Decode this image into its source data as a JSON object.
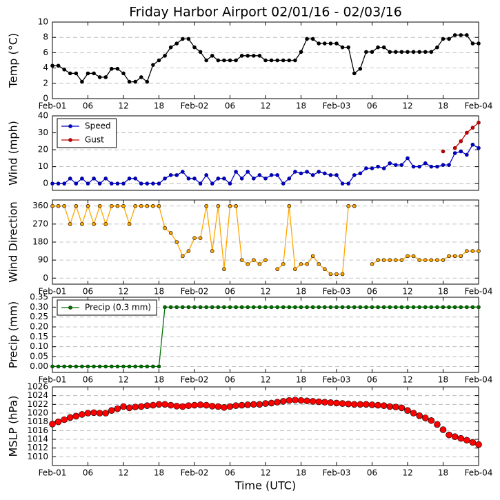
{
  "chart_data": [
    {
      "type": "line",
      "title": "Friday Harbor Airport 02/01/16 - 02/03/16",
      "ylabel": "Temp (°C)",
      "xlim": [
        0,
        72
      ],
      "ylim": [
        0,
        10
      ],
      "yticks": [
        0,
        2,
        4,
        6,
        8,
        10
      ],
      "grid": true,
      "xticks": [
        {
          "value": 0,
          "label": "Feb-01"
        },
        {
          "value": 6,
          "label": "06"
        },
        {
          "value": 12,
          "label": "12"
        },
        {
          "value": 18,
          "label": "18"
        },
        {
          "value": 24,
          "label": "Feb-02"
        },
        {
          "value": 30,
          "label": "06"
        },
        {
          "value": 36,
          "label": "12"
        },
        {
          "value": 42,
          "label": "18"
        },
        {
          "value": 48,
          "label": "Feb-03"
        },
        {
          "value": 54,
          "label": "06"
        },
        {
          "value": 60,
          "label": "12"
        },
        {
          "value": 66,
          "label": "18"
        },
        {
          "value": 72,
          "label": "Feb-04"
        }
      ],
      "x": [
        0,
        1,
        2,
        3,
        4,
        5,
        6,
        7,
        8,
        9,
        10,
        11,
        12,
        13,
        14,
        15,
        16,
        17,
        18,
        19,
        20,
        21,
        22,
        23,
        24,
        25,
        26,
        27,
        28,
        29,
        30,
        31,
        32,
        33,
        34,
        35,
        36,
        37,
        38,
        39,
        40,
        41,
        42,
        43,
        44,
        45,
        46,
        47,
        48,
        49,
        50,
        51,
        52,
        53,
        54,
        55,
        56,
        57,
        58,
        59,
        60,
        61,
        62,
        63,
        64,
        65,
        66,
        67,
        68,
        69,
        70,
        71,
        72
      ],
      "series": [
        {
          "color": "#000000",
          "edgecolor": "#000000",
          "values": [
            4.3,
            4.3,
            3.8,
            3.3,
            3.3,
            2.2,
            3.3,
            3.3,
            2.8,
            2.8,
            3.9,
            3.9,
            3.3,
            2.2,
            2.2,
            2.8,
            2.2,
            4.4,
            5.0,
            5.6,
            6.7,
            7.2,
            7.8,
            7.8,
            6.7,
            6.1,
            5.0,
            5.6,
            5.0,
            5.0,
            5.0,
            5.0,
            5.6,
            5.6,
            5.6,
            5.6,
            5.0,
            5.0,
            5.0,
            5.0,
            5.0,
            5.0,
            6.1,
            7.8,
            7.8,
            7.2,
            7.2,
            7.2,
            7.2,
            6.7,
            6.7,
            3.3,
            3.9,
            6.1,
            6.1,
            6.7,
            6.7,
            6.1,
            6.1,
            6.1,
            6.1,
            6.1,
            6.1,
            6.1,
            6.1,
            6.7,
            7.8,
            7.8,
            8.3,
            8.3,
            8.3,
            7.2,
            7.2
          ]
        }
      ]
    },
    {
      "type": "line",
      "ylabel": "Wind (mph)",
      "xlim": [
        0,
        72
      ],
      "ylim": [
        -4,
        40
      ],
      "yticks": [
        0,
        10,
        20,
        30,
        40
      ],
      "grid": true,
      "legend": "upper left",
      "x": [
        0,
        1,
        2,
        3,
        4,
        5,
        6,
        7,
        8,
        9,
        10,
        11,
        12,
        13,
        14,
        15,
        16,
        17,
        18,
        19,
        20,
        21,
        22,
        23,
        24,
        25,
        26,
        27,
        28,
        29,
        30,
        31,
        32,
        33,
        34,
        35,
        36,
        37,
        38,
        39,
        40,
        41,
        42,
        43,
        44,
        45,
        46,
        47,
        48,
        49,
        50,
        51,
        52,
        53,
        54,
        55,
        56,
        57,
        58,
        59,
        60,
        61,
        62,
        63,
        64,
        65,
        66,
        67,
        68,
        69,
        70,
        71,
        72
      ],
      "series": [
        {
          "name": "Speed",
          "color": "#0000cc",
          "edgecolor": "#000066",
          "values": [
            0,
            0,
            0,
            3,
            0,
            3,
            0,
            3,
            0,
            3,
            0,
            0,
            0,
            3,
            3,
            0,
            0,
            0,
            0,
            3,
            5,
            5,
            7,
            3,
            3,
            0,
            5,
            0,
            3,
            3,
            0,
            7,
            3,
            7,
            3,
            5,
            3,
            5,
            5,
            0,
            3,
            7,
            6,
            7,
            5,
            7,
            6,
            5,
            5,
            0,
            0,
            5,
            6,
            9,
            9,
            10,
            9,
            12,
            11,
            11,
            15,
            10,
            10,
            12,
            10,
            10,
            11,
            11,
            18,
            19,
            17,
            23,
            21
          ]
        },
        {
          "name": "Gust",
          "color": "#cc0000",
          "edgecolor": "#660000",
          "x": [
            66,
            67,
            68,
            69,
            70,
            71,
            72
          ],
          "values": [
            19,
            null,
            21,
            25,
            30,
            33,
            36
          ]
        }
      ]
    },
    {
      "type": "line",
      "ylabel": "Wind Direction",
      "xlim": [
        0,
        72
      ],
      "ylim": [
        -30,
        390
      ],
      "yticks": [
        0,
        90,
        180,
        270,
        360
      ],
      "grid": true,
      "xticks": [
        {
          "value": 0,
          "label": "Feb-01"
        },
        {
          "value": 6,
          "label": "06"
        },
        {
          "value": 12,
          "label": "12"
        },
        {
          "value": 18,
          "label": "18"
        },
        {
          "value": 24,
          "label": "Feb-02"
        },
        {
          "value": 30,
          "label": "06"
        },
        {
          "value": 36,
          "label": "12"
        },
        {
          "value": 42,
          "label": "18"
        },
        {
          "value": 48,
          "label": "Feb-03"
        },
        {
          "value": 54,
          "label": "06"
        },
        {
          "value": 60,
          "label": "12"
        },
        {
          "value": 66,
          "label": "18"
        },
        {
          "value": 72,
          "label": "Feb-04"
        }
      ],
      "x": [
        0,
        1,
        2,
        3,
        4,
        5,
        6,
        7,
        8,
        9,
        10,
        11,
        12,
        13,
        14,
        15,
        16,
        17,
        18,
        19,
        20,
        21,
        22,
        23,
        24,
        25,
        26,
        27,
        28,
        29,
        30,
        31,
        32,
        33,
        34,
        35,
        36,
        37,
        38,
        39,
        40,
        41,
        42,
        43,
        44,
        45,
        46,
        47,
        48,
        49,
        50,
        51,
        52,
        53,
        54,
        55,
        56,
        57,
        58,
        59,
        60,
        61,
        62,
        63,
        64,
        65,
        66,
        67,
        68,
        69,
        70,
        71,
        72
      ],
      "series": [
        {
          "color": "#ffa500",
          "edgecolor": "#000000",
          "values": [
            360,
            360,
            360,
            270,
            360,
            270,
            360,
            270,
            360,
            270,
            360,
            360,
            360,
            270,
            360,
            360,
            360,
            360,
            360,
            250,
            225,
            180,
            110,
            135,
            200,
            200,
            360,
            135,
            360,
            45,
            360,
            360,
            90,
            70,
            90,
            70,
            90,
            null,
            45,
            70,
            360,
            45,
            70,
            70,
            110,
            70,
            45,
            20,
            20,
            20,
            360,
            360,
            null,
            null,
            70,
            90,
            90,
            90,
            90,
            90,
            110,
            110,
            90,
            90,
            90,
            90,
            90,
            110,
            110,
            110,
            135,
            135,
            135
          ]
        }
      ]
    },
    {
      "type": "line",
      "ylabel": "Precip (mm)",
      "xlim": [
        0,
        72
      ],
      "ylim": [
        -0.03,
        0.35
      ],
      "grid": true,
      "legend": "upper left",
      "yticks": [
        {
          "value": 0,
          "label": "0.00"
        },
        {
          "value": 0.05,
          "label": "0.05"
        },
        {
          "value": 0.1,
          "label": "0.10"
        },
        {
          "value": 0.15,
          "label": "0.15"
        },
        {
          "value": 0.2,
          "label": "0.20"
        },
        {
          "value": 0.25,
          "label": "0.25"
        },
        {
          "value": 0.3,
          "label": "0.30"
        },
        {
          "value": 0.35,
          "label": "0.35"
        }
      ],
      "xticks": [
        {
          "value": 0,
          "label": "Feb-01"
        },
        {
          "value": 6,
          "label": "06"
        },
        {
          "value": 12,
          "label": "12"
        },
        {
          "value": 18,
          "label": "18"
        },
        {
          "value": 24,
          "label": "Feb-02"
        },
        {
          "value": 30,
          "label": "06"
        },
        {
          "value": 36,
          "label": "12"
        },
        {
          "value": 42,
          "label": "18"
        },
        {
          "value": 48,
          "label": "Feb-03"
        },
        {
          "value": 54,
          "label": "06"
        },
        {
          "value": 60,
          "label": "12"
        },
        {
          "value": 66,
          "label": "18"
        },
        {
          "value": 72,
          "label": "Feb-04"
        }
      ],
      "x": [
        0,
        1,
        2,
        3,
        4,
        5,
        6,
        7,
        8,
        9,
        10,
        11,
        12,
        13,
        14,
        15,
        16,
        17,
        18,
        19,
        20,
        21,
        22,
        23,
        24,
        25,
        26,
        27,
        28,
        29,
        30,
        31,
        32,
        33,
        34,
        35,
        36,
        37,
        38,
        39,
        40,
        41,
        42,
        43,
        44,
        45,
        46,
        47,
        48,
        49,
        50,
        51,
        52,
        53,
        54,
        55,
        56,
        57,
        58,
        59,
        60,
        61,
        62,
        63,
        64,
        65,
        66,
        67,
        68,
        69,
        70,
        71,
        72
      ],
      "series": [
        {
          "name": "Precip (0.3 mm)",
          "color": "#007000",
          "edgecolor": "#003000",
          "values": [
            0,
            0,
            0,
            0,
            0,
            0,
            0,
            0,
            0,
            0,
            0,
            0,
            0,
            0,
            0,
            0,
            0,
            0,
            0,
            0.3,
            0.3,
            0.3,
            0.3,
            0.3,
            0.3,
            0.3,
            0.3,
            0.3,
            0.3,
            0.3,
            0.3,
            0.3,
            0.3,
            0.3,
            0.3,
            0.3,
            0.3,
            0.3,
            0.3,
            0.3,
            0.3,
            0.3,
            0.3,
            0.3,
            0.3,
            0.3,
            0.3,
            0.3,
            0.3,
            0.3,
            0.3,
            0.3,
            0.3,
            0.3,
            0.3,
            0.3,
            0.3,
            0.3,
            0.3,
            0.3,
            0.3,
            0.3,
            0.3,
            0.3,
            0.3,
            0.3,
            0.3,
            0.3,
            0.3,
            0.3,
            0.3,
            0.3,
            0.3
          ]
        }
      ]
    },
    {
      "type": "scatter",
      "ylabel": "MSLP (hPa)",
      "xlabel": "Time (UTC)",
      "xlim": [
        0,
        72
      ],
      "ylim": [
        1008,
        1026
      ],
      "yticks": [
        1010,
        1012,
        1014,
        1016,
        1018,
        1020,
        1022,
        1024,
        1026
      ],
      "grid": true,
      "xticks": [
        {
          "value": 0,
          "label": "Feb-01"
        },
        {
          "value": 6,
          "label": "06"
        },
        {
          "value": 12,
          "label": "12"
        },
        {
          "value": 18,
          "label": "18"
        },
        {
          "value": 24,
          "label": "Feb-02"
        },
        {
          "value": 30,
          "label": "06"
        },
        {
          "value": 36,
          "label": "12"
        },
        {
          "value": 42,
          "label": "18"
        },
        {
          "value": 48,
          "label": "Feb-03"
        },
        {
          "value": 54,
          "label": "06"
        },
        {
          "value": 60,
          "label": "12"
        },
        {
          "value": 66,
          "label": "18"
        },
        {
          "value": 72,
          "label": "Feb-04"
        }
      ],
      "x": [
        0,
        1,
        2,
        3,
        4,
        5,
        6,
        7,
        8,
        9,
        10,
        11,
        12,
        13,
        14,
        15,
        16,
        17,
        18,
        19,
        20,
        21,
        22,
        23,
        24,
        25,
        26,
        27,
        28,
        29,
        30,
        31,
        32,
        33,
        34,
        35,
        36,
        37,
        38,
        39,
        40,
        41,
        42,
        43,
        44,
        45,
        46,
        47,
        48,
        49,
        50,
        51,
        52,
        53,
        54,
        55,
        56,
        57,
        58,
        59,
        60,
        61,
        62,
        63,
        64,
        65,
        66,
        67,
        68,
        69,
        70,
        71,
        72
      ],
      "series": [
        {
          "color": "#ff0000",
          "edgecolor": "#000000",
          "values": [
            1017.5,
            1018,
            1018.5,
            1019,
            1019.3,
            1019.7,
            1020,
            1020.1,
            1020,
            1020,
            1020.6,
            1021,
            1021.5,
            1021.2,
            1021.4,
            1021.5,
            1021.7,
            1021.8,
            1022,
            1022,
            1021.8,
            1021.6,
            1021.5,
            1021.7,
            1021.8,
            1021.9,
            1021.8,
            1021.6,
            1021.5,
            1021.3,
            1021.5,
            1021.7,
            1021.8,
            1021.9,
            1022,
            1022,
            1022.2,
            1022.3,
            1022.5,
            1022.7,
            1022.9,
            1023,
            1022.9,
            1022.8,
            1022.7,
            1022.6,
            1022.5,
            1022.4,
            1022.3,
            1022.2,
            1022.1,
            1022,
            1022,
            1022,
            1021.9,
            1021.8,
            1021.7,
            1021.5,
            1021.4,
            1021.2,
            1020.6,
            1020,
            1019.4,
            1018.9,
            1018.3,
            1017.4,
            1016.2,
            1015,
            1014.6,
            1014.2,
            1013.8,
            1013.3,
            1012.8
          ]
        }
      ]
    }
  ]
}
